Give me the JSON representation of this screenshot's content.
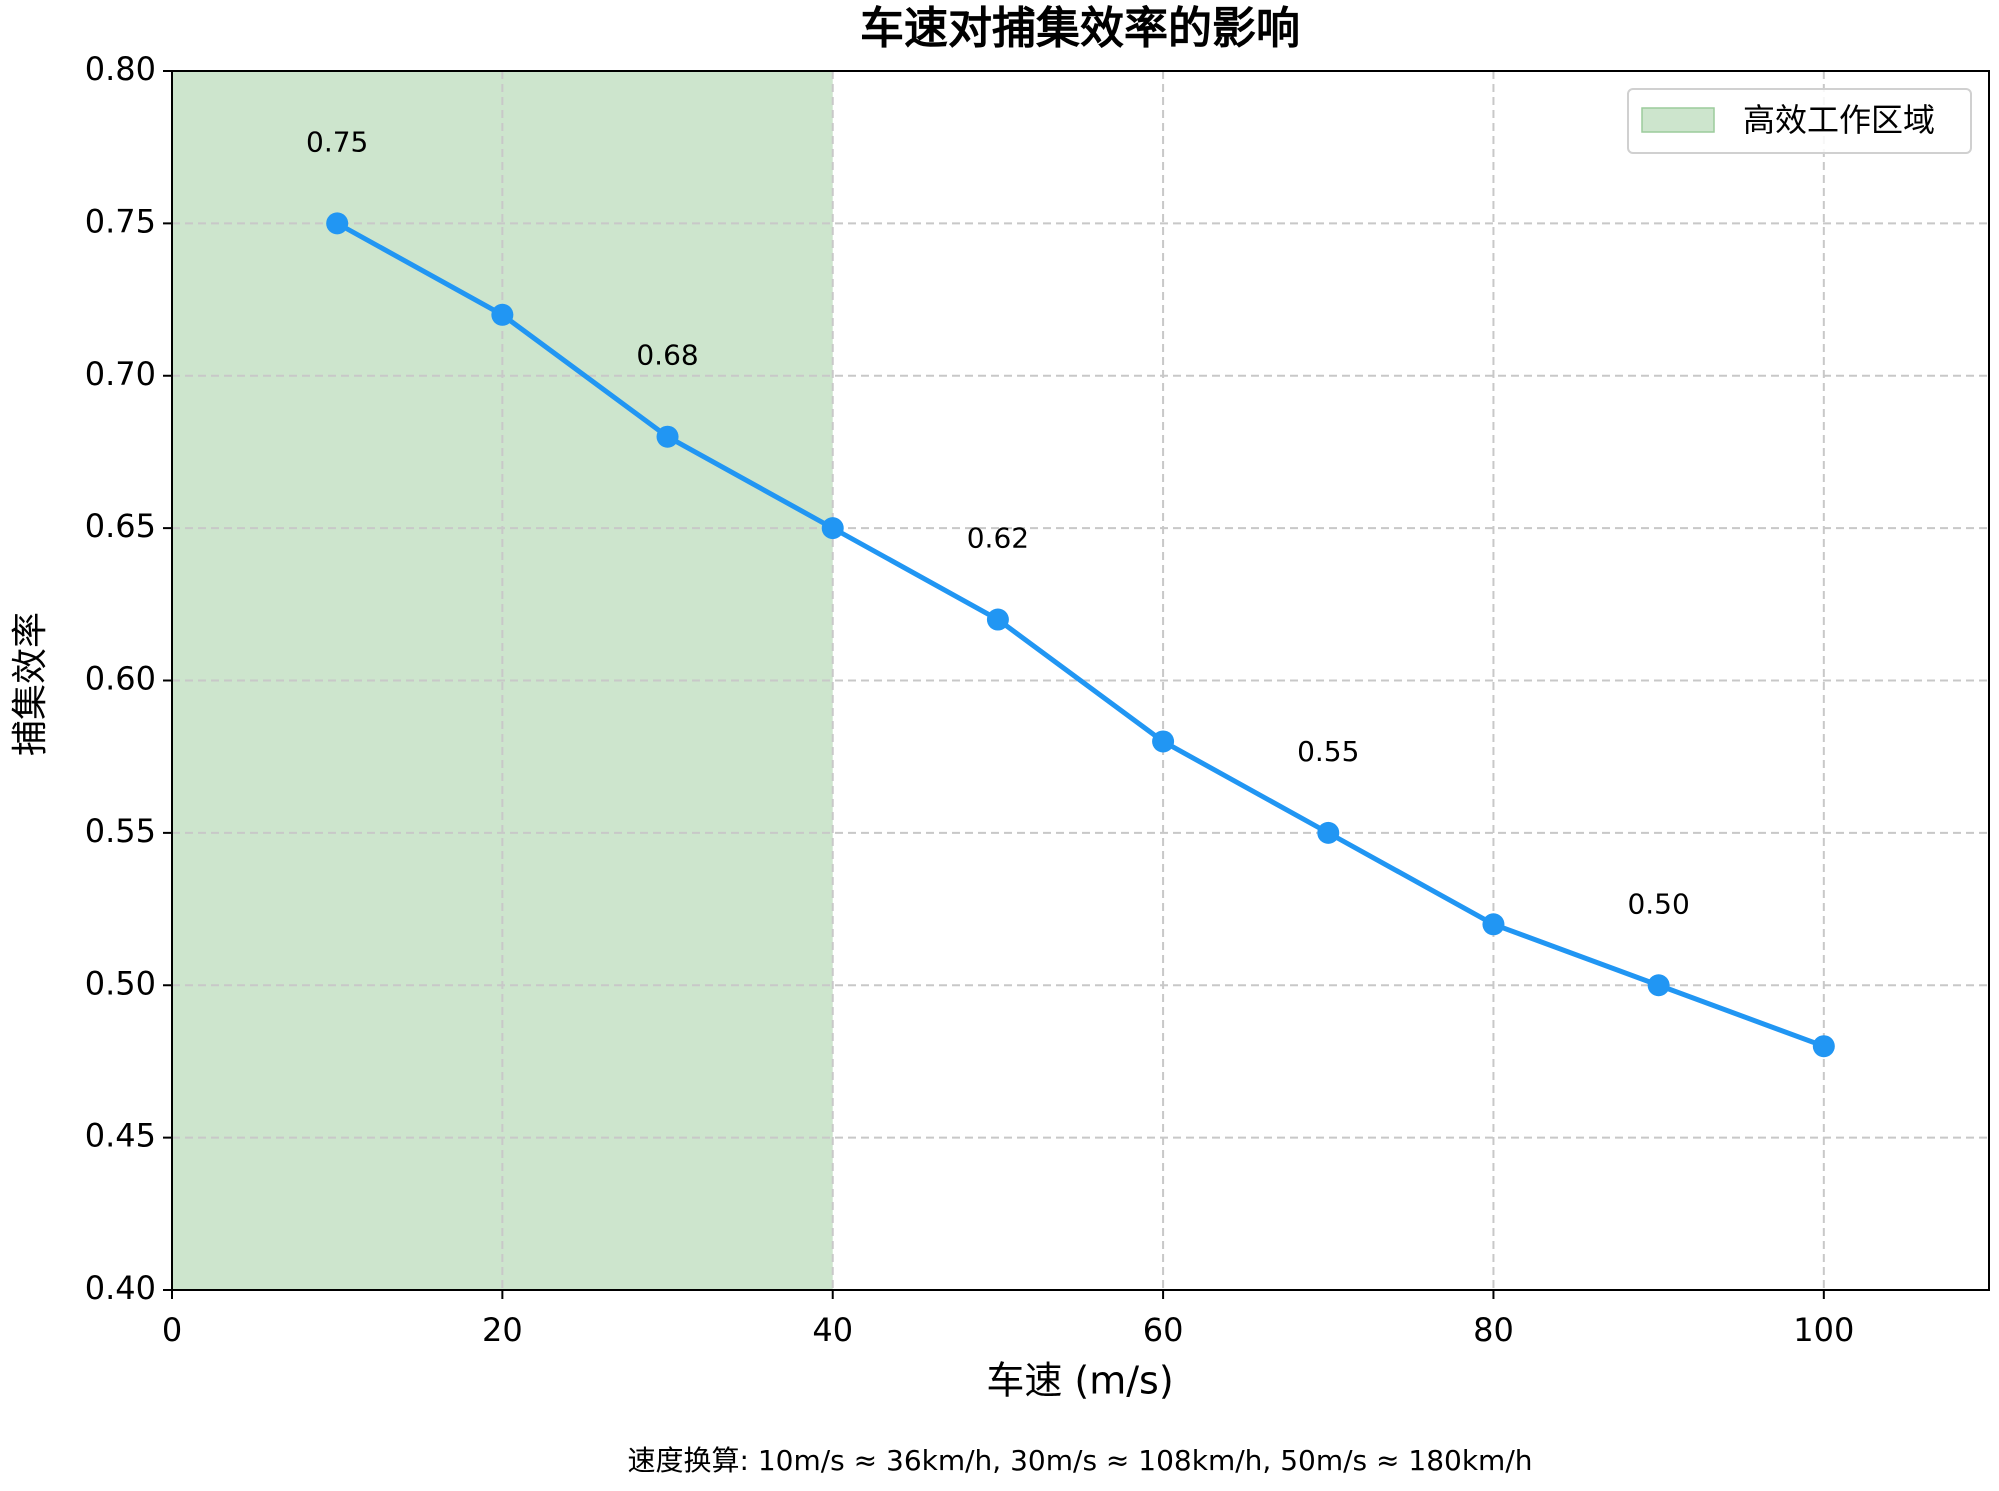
{
  "chart_data": {
    "type": "line",
    "title": "车速对捕集效率的影响",
    "xlabel": "车速 (m/s)",
    "ylabel": "捕集效率",
    "footnote": "速度换算: 10m/s ≈ 36km/h, 30m/s ≈ 108km/h, 50m/s ≈ 180km/h",
    "x": [
      10,
      20,
      30,
      40,
      50,
      60,
      70,
      80,
      90,
      100
    ],
    "series": [
      {
        "color": "#2196f3",
        "values": [
          0.75,
          0.72,
          0.68,
          0.65,
          0.62,
          0.58,
          0.55,
          0.52,
          0.5,
          0.48
        ],
        "value_labels": [
          "0.75",
          null,
          "0.68",
          null,
          "0.62",
          null,
          "0.55",
          null,
          "0.50",
          null
        ]
      }
    ],
    "spans": [
      {
        "name": "高效工作区域",
        "start": 0,
        "end": 40,
        "color": "#cde5cd"
      }
    ],
    "xlim": [
      0,
      110
    ],
    "ylim": [
      0.4,
      0.8
    ],
    "xticks": [
      0,
      20,
      40,
      60,
      80,
      100
    ],
    "yticks": [
      {
        "value": 0.4,
        "label": "0.40"
      },
      0.45,
      {
        "value": 0.5,
        "label": "0.50"
      },
      0.55,
      {
        "value": 0.6,
        "label": "0.60"
      },
      0.65,
      {
        "value": 0.7,
        "label": "0.70"
      },
      0.75,
      {
        "value": 0.8,
        "label": "0.80"
      }
    ],
    "grid": true,
    "legend": "upper right"
  }
}
